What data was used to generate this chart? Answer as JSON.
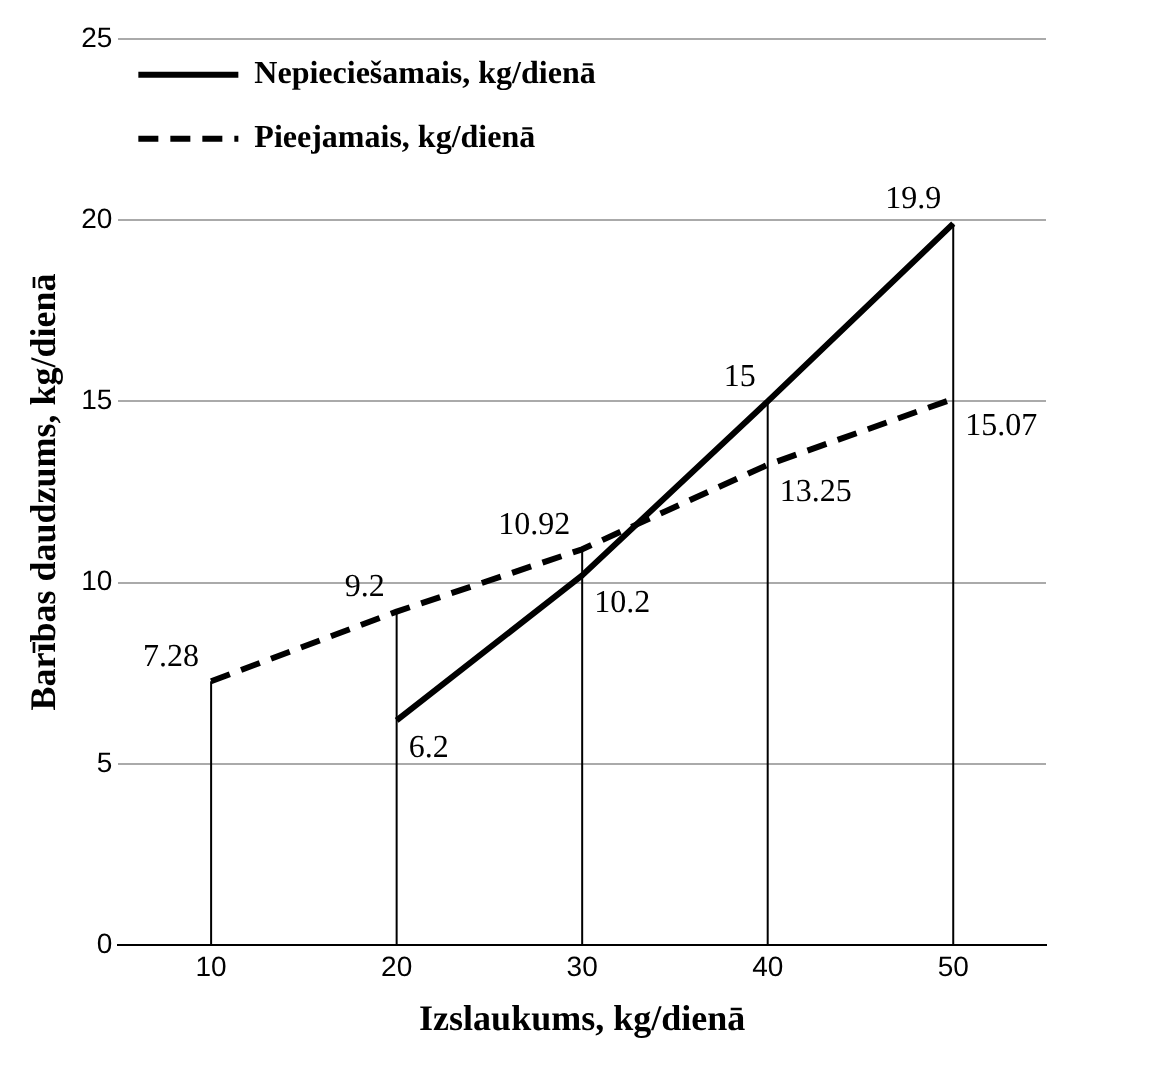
{
  "chart_data": {
    "type": "line",
    "xlabel": "Izslaukums, kg/dienā",
    "ylabel": "Barības daudzums, kg/dienā",
    "xlim": [
      5,
      55
    ],
    "xticks": [
      10,
      20,
      30,
      40,
      50
    ],
    "ylim": [
      0,
      25
    ],
    "yticks": [
      0,
      5,
      10,
      15,
      20,
      25
    ],
    "grid": "y",
    "legend": "top left",
    "marker": "none",
    "data_labels": true,
    "series": [
      {
        "name": "Nepieciešamais, kg/dienā",
        "color": "#000000",
        "line_style": "solid",
        "x": [
          20,
          30,
          40,
          50
        ],
        "values": [
          6.2,
          10.2,
          15,
          19.9
        ]
      },
      {
        "name": "Pieejamais, kg/dienā",
        "color": "#000000",
        "line_style": "dashed",
        "x": [
          10,
          20,
          30,
          40,
          50
        ],
        "values": [
          7.28,
          9.2,
          10.92,
          13.25,
          15.07
        ]
      }
    ]
  }
}
